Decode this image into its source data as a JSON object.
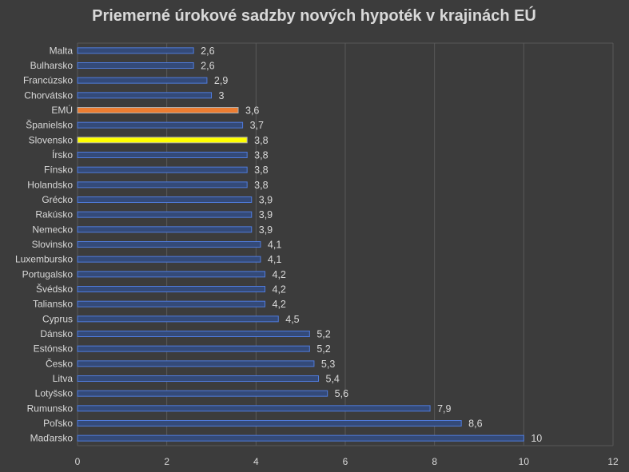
{
  "chart_data": {
    "type": "bar",
    "orientation": "horizontal",
    "title": "Priemerné úrokové sadzby nových hypoték v krajinách EÚ",
    "xlabel": "",
    "ylabel": "",
    "xlim": [
      0,
      12
    ],
    "x_ticks": [
      0,
      2,
      4,
      6,
      8,
      10,
      12
    ],
    "x_tick_labels": [
      "0",
      "2",
      "4",
      "6",
      "8",
      "10",
      "12"
    ],
    "grid": "vertical",
    "legend": "none",
    "categories": [
      "Malta",
      "Bulharsko",
      "Francúzsko",
      "Chorvátsko",
      "EMÚ",
      "Španielsko",
      "Slovensko",
      "Írsko",
      "Fínsko",
      "Holandsko",
      "Grécko",
      "Rakúsko",
      "Nemecko",
      "Slovinsko",
      "Luxembursko",
      "Portugalsko",
      "Švédsko",
      "Taliansko",
      "Cyprus",
      "Dánsko",
      "Estónsko",
      "Česko",
      "Litva",
      "Lotyšsko",
      "Rumunsko",
      "Poľsko",
      "Maďarsko"
    ],
    "values": [
      2.6,
      2.6,
      2.9,
      3,
      3.6,
      3.7,
      3.8,
      3.8,
      3.8,
      3.8,
      3.9,
      3.9,
      3.9,
      4.1,
      4.1,
      4.2,
      4.2,
      4.2,
      4.5,
      5.2,
      5.2,
      5.3,
      5.4,
      5.6,
      7.9,
      8.6,
      10
    ],
    "value_labels": [
      "2,6",
      "2,6",
      "2,9",
      "3",
      "3,6",
      "3,7",
      "3,8",
      "3,8",
      "3,8",
      "3,8",
      "3,9",
      "3,9",
      "3,9",
      "4,1",
      "4,1",
      "4,2",
      "4,2",
      "4,2",
      "4,5",
      "5,2",
      "5,2",
      "5,3",
      "5,4",
      "5,6",
      "7,9",
      "8,6",
      "10"
    ],
    "colors": {
      "default_fill": "#344a78",
      "default_border": "#4f7bdc",
      "highlight": {
        "EMÚ": {
          "fill": "#ed7d31",
          "border": "#b0b0b0"
        },
        "Slovensko": {
          "fill": "#ffff00",
          "border": "#b0b0b0"
        }
      },
      "grid": "#595959",
      "text": "#d9d9d9",
      "background": "#3c3c3c"
    }
  }
}
